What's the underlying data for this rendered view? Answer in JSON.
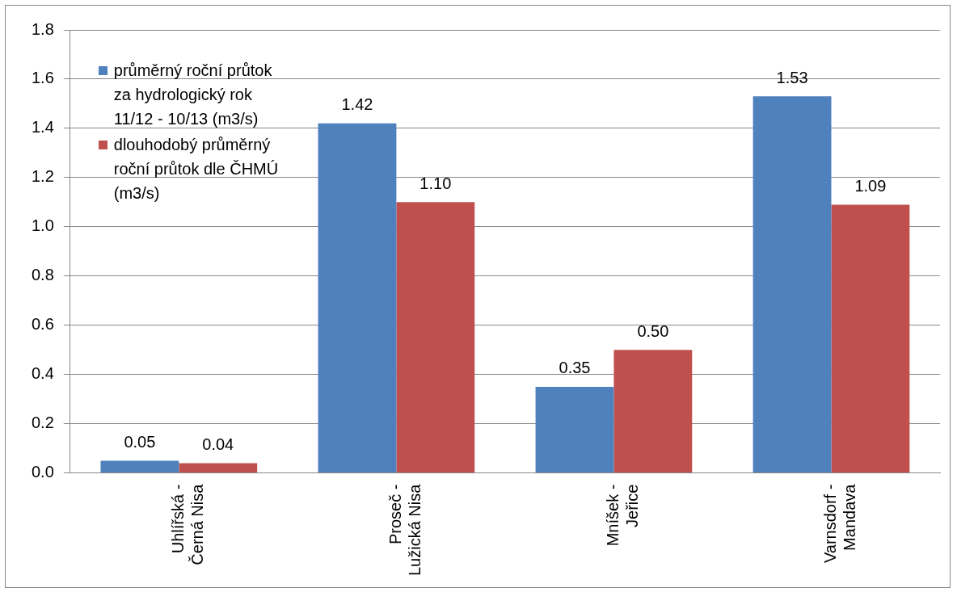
{
  "chart_data": {
    "type": "bar",
    "categories": [
      "Uhlířská -\nČerná Nisa",
      "Proseč -\nLužická Nisa",
      "Mníšek -\nJeřice",
      "Varnsdorf -\nMandava"
    ],
    "series": [
      {
        "name": "průměrný roční průtok za hydrologický rok 11/12 - 10/13 (m3/s)",
        "color": "#4f81bd",
        "values": [
          0.05,
          1.42,
          0.35,
          1.53
        ],
        "value_labels": [
          "0.05",
          "1.42",
          "0.35",
          "1.53"
        ]
      },
      {
        "name": "dlouhodobý průměrný roční průtok dle ČHMÚ (m3/s)",
        "color": "#c0504d",
        "values": [
          0.04,
          1.1,
          0.5,
          1.09
        ],
        "value_labels": [
          "0.04",
          "1.10",
          "0.50",
          "1.09"
        ]
      }
    ],
    "ylim": [
      0,
      1.8
    ],
    "yticks": [
      {
        "value": 0,
        "label": "0.0"
      },
      {
        "value": 0.2,
        "label": "0.2"
      },
      {
        "value": 0.4,
        "label": "0.4"
      },
      {
        "value": 0.6,
        "label": "0.6"
      },
      {
        "value": 0.8,
        "label": "0.8"
      },
      {
        "value": 1,
        "label": "1.0"
      },
      {
        "value": 1.2,
        "label": "1.2"
      },
      {
        "value": 1.4,
        "label": "1.4"
      },
      {
        "value": 1.6,
        "label": "1.6"
      },
      {
        "value": 1.8,
        "label": "1.8"
      }
    ],
    "grid": "y",
    "legend": "top left"
  }
}
